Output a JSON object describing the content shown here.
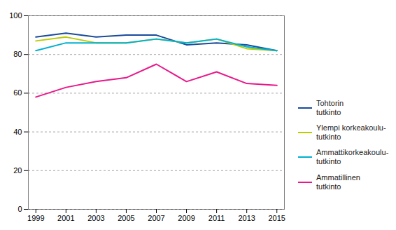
{
  "chart_data": {
    "type": "line",
    "x": [
      1999,
      2001,
      2003,
      2005,
      2007,
      2009,
      2011,
      2013,
      2015
    ],
    "series": [
      {
        "name": "Tohtorin\ntutkinto",
        "color": "#1a4b9b",
        "values": [
          89,
          91,
          89,
          90,
          90,
          85,
          86,
          85,
          82
        ]
      },
      {
        "name": "Ylempi korkeakoulu-\ntutkinto",
        "color": "#b8cc00",
        "values": [
          87,
          89,
          86,
          86,
          88,
          86,
          88,
          83,
          82
        ]
      },
      {
        "name": "Ammattikorkeakoulu-\ntutkinto",
        "color": "#00b0d0",
        "values": [
          82,
          86,
          86,
          86,
          88,
          86,
          88,
          84,
          82
        ]
      },
      {
        "name": "Ammatillinen\ntutkinto",
        "color": "#e8198a",
        "values": [
          58,
          63,
          66,
          68,
          75,
          66,
          71,
          65,
          64
        ]
      }
    ],
    "xlim": [
      1998.5,
      2015.5
    ],
    "xticks": [
      1999,
      2001,
      2003,
      2005,
      2007,
      2009,
      2011,
      2013,
      2015
    ],
    "ylim": [
      0,
      100
    ],
    "yticks": [
      0,
      20,
      40,
      60,
      80,
      100
    ],
    "grid": "y",
    "legend": "right"
  }
}
